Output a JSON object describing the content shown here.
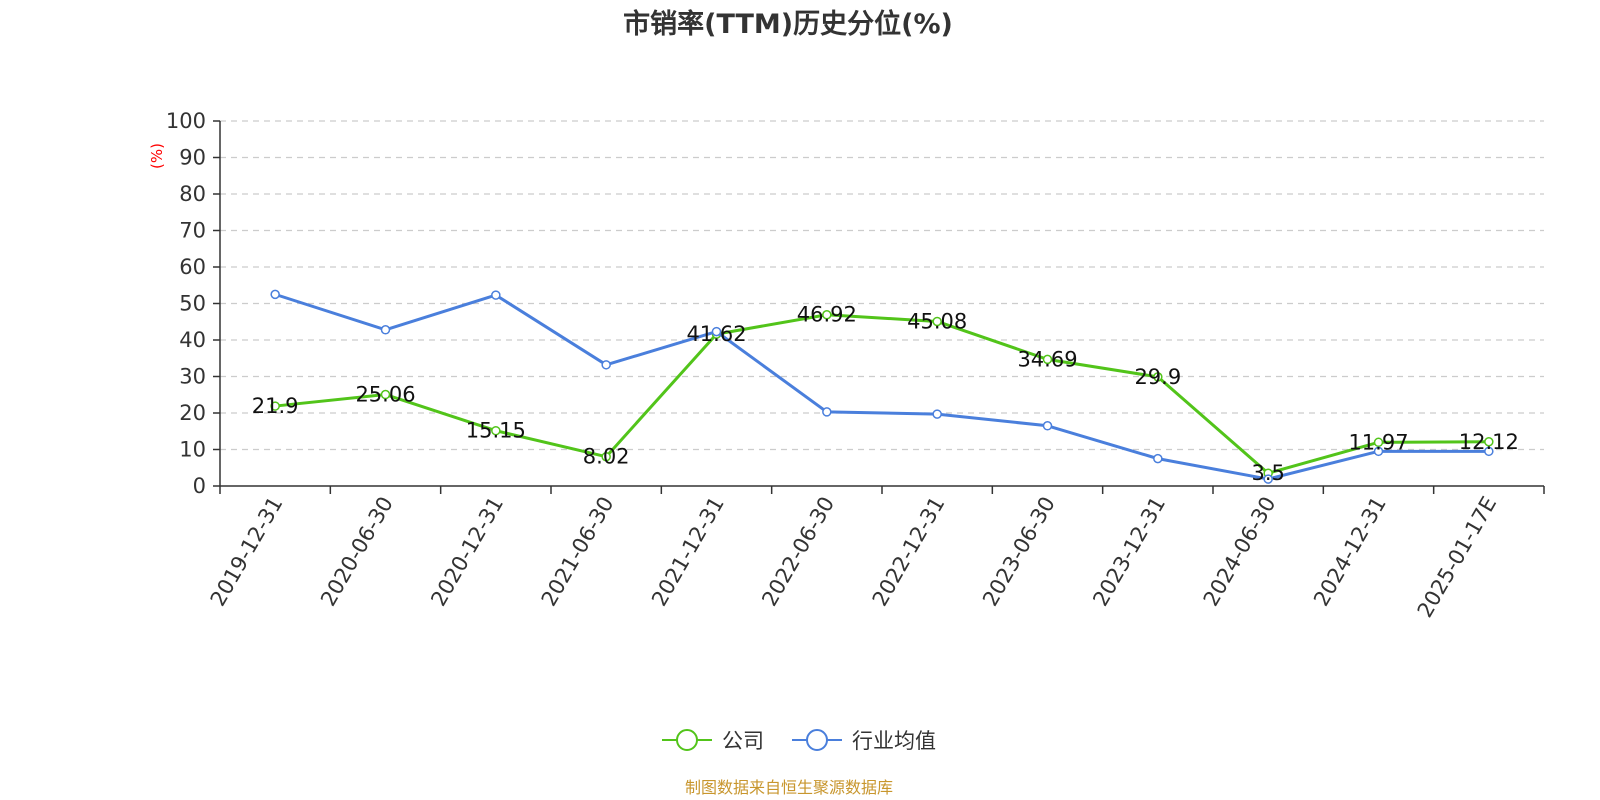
{
  "chart_data": {
    "type": "line",
    "title": "市销率(TTM)历史分位(%)",
    "y_unit": "(%)",
    "categories": [
      "2019-12-31",
      "2020-06-30",
      "2020-12-31",
      "2021-06-30",
      "2021-12-31",
      "2022-06-30",
      "2022-12-31",
      "2023-06-30",
      "2023-12-31",
      "2024-06-30",
      "2024-12-31",
      "2025-01-17E"
    ],
    "ylim": [
      0,
      100
    ],
    "yticks": [
      0,
      10,
      20,
      30,
      40,
      50,
      60,
      70,
      80,
      90,
      100
    ],
    "grid": true,
    "legend_position": "bottom",
    "series": [
      {
        "name": "公司",
        "color": "#52c41a",
        "show_labels": true,
        "values": [
          21.9,
          25.06,
          15.15,
          8.02,
          41.62,
          46.92,
          45.08,
          34.69,
          29.9,
          3.5,
          11.97,
          12.12
        ]
      },
      {
        "name": "行业均值",
        "color": "#4a7fdc",
        "show_labels": false,
        "values": [
          52.5,
          42.8,
          52.3,
          33.2,
          42.3,
          20.3,
          19.7,
          16.5,
          7.5,
          1.9,
          9.5,
          9.5
        ]
      }
    ]
  },
  "source_text": "制图数据来自恒生聚源数据库",
  "colors": {
    "unit_label": "#ff0000",
    "source": "#c8962d",
    "axis": "#333333",
    "grid": "#cccccc"
  }
}
